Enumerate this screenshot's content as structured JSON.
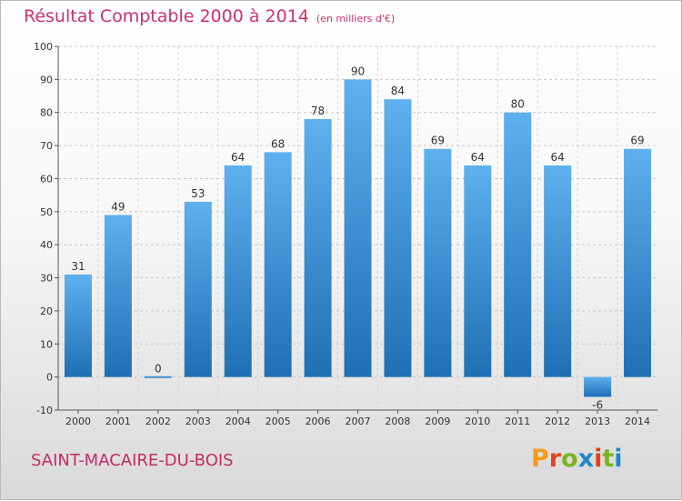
{
  "chart_data": {
    "type": "bar",
    "title": "Résultat Comptable 2000 à 2014",
    "subtitle": "(en milliers d'€)",
    "xlabel": "",
    "ylabel": "",
    "categories": [
      "2000",
      "2001",
      "2002",
      "2003",
      "2004",
      "2005",
      "2006",
      "2007",
      "2008",
      "2009",
      "2010",
      "2011",
      "2012",
      "2013",
      "2014"
    ],
    "values": [
      31,
      49,
      0,
      53,
      64,
      68,
      78,
      90,
      84,
      69,
      64,
      80,
      64,
      -6,
      69
    ],
    "ylim": [
      -10,
      100
    ],
    "yticks": [
      -10,
      0,
      10,
      20,
      30,
      40,
      50,
      60,
      70,
      80,
      90,
      100
    ],
    "grid": true,
    "bar_color": "#3a8fd6",
    "bar_color_light": "#5eb0ee",
    "bar_color_dark": "#1f6fb5"
  },
  "footer": {
    "commune": "SAINT-MACAIRE-DU-BOIS",
    "logo_text": "Proxiti"
  },
  "colors": {
    "title": "#d0306a",
    "commune": "#c42b63",
    "logo_letters": [
      "#f29a1b",
      "#e8401c",
      "#7ab51d",
      "#1e88c8",
      "#e8401c",
      "#7ab51d",
      "#1e88c8"
    ]
  }
}
